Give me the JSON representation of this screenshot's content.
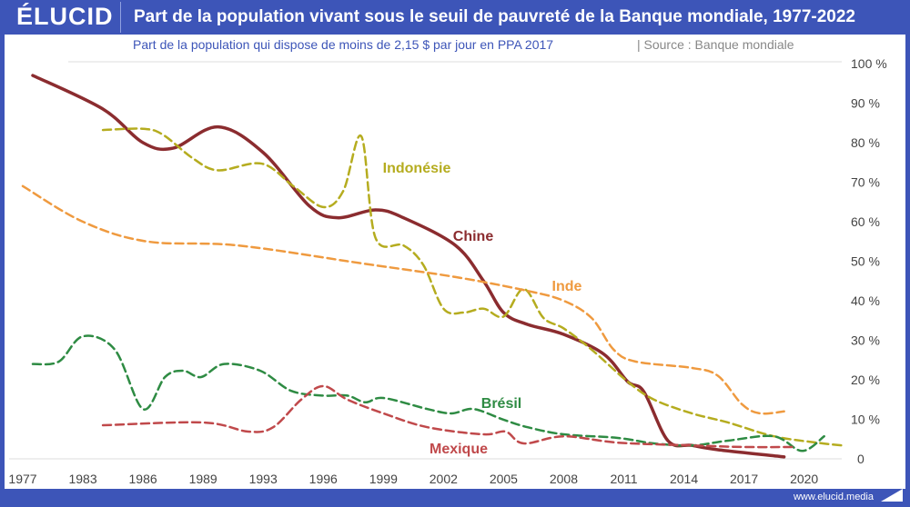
{
  "header": {
    "logo": "ÉLUCID",
    "title": "Part de la population vivant sous le seuil de pauvreté de la Banque mondiale, 1977-2022"
  },
  "subtitle": "Part de la population qui dispose de moins de 2,15 $ par jour en PPA 2017",
  "source": "|  Source : Banque mondiale",
  "footer": "www.elucid.media",
  "colors": {
    "brand": "#3d55b8"
  },
  "chart_data": {
    "type": "line",
    "title": "Part de la population vivant sous le seuil de pauvreté de la Banque mondiale, 1977-2022",
    "x_ticks": [
      "1977",
      "1983",
      "1986",
      "1989",
      "1993",
      "1996",
      "1999",
      "2002",
      "2005",
      "2008",
      "2011",
      "2014",
      "2017",
      "2020"
    ],
    "y_ticks": [
      "0",
      "10 %",
      "20 %",
      "30 %",
      "40 %",
      "50 %",
      "60 %",
      "70 %",
      "80 %",
      "90 %",
      "100 %"
    ],
    "ylim": [
      0,
      100
    ],
    "grid": "horizontal",
    "series": [
      {
        "name": "Chine",
        "color": "#8b2c2f",
        "dash": false,
        "x": [
          1978,
          1984,
          1986,
          1987.5,
          1990,
          1993,
          1995.3,
          1996.7,
          1998.6,
          2000,
          2002.6,
          2004,
          2005,
          2006.2,
          2008,
          2010,
          2011.2,
          2012,
          2013.2,
          2014.4,
          2015.7,
          2019
        ],
        "y": [
          97,
          88.5,
          80,
          78.6,
          84,
          77.5,
          64,
          61,
          63,
          61,
          54,
          45,
          37,
          34,
          31.5,
          26.5,
          19.5,
          17,
          4.6,
          3.4,
          2.3,
          0.5
        ]
      },
      {
        "name": "Indonésie",
        "color": "#b5ac1f",
        "dash": true,
        "x": [
          1984,
          1986,
          1987,
          1988.5,
          1990,
          1992.9,
          1994.5,
          1996,
          1997,
          1997.9,
          1998.6,
          2000,
          2001,
          2002,
          2003,
          2004,
          2005,
          2006,
          2007,
          2008,
          2009.4,
          2011.2,
          2012.5,
          2014.4,
          2016.2,
          2018.5,
          2020.8,
          2021.9
        ],
        "y": [
          83.2,
          83.5,
          82,
          76,
          73,
          74.7,
          69,
          63.7,
          67.8,
          81.6,
          56,
          54,
          49,
          38,
          37,
          38,
          36,
          43,
          35.6,
          33,
          27.6,
          19.5,
          15,
          11.5,
          9.2,
          5.7,
          4,
          3.4
        ]
      },
      {
        "name": "Inde",
        "color": "#ef9a3f",
        "dash": true,
        "x": [
          1977,
          1983,
          1986.2,
          1991.3,
          1998,
          2002.6,
          2006.2,
          2008,
          2009.4,
          2010.5,
          2011.6,
          2014.4,
          2015.7,
          2016.9,
          2017.8,
          2019
        ],
        "y": [
          69,
          60,
          55,
          54,
          49.4,
          46,
          42.5,
          40,
          35.6,
          27.6,
          24.6,
          23,
          21,
          13.8,
          11.5,
          12
        ]
      },
      {
        "name": "Brésil",
        "color": "#2e8b43",
        "dash": true,
        "x": [
          1978,
          1980.6,
          1983,
          1984.6,
          1986,
          1987.1,
          1988,
          1988.9,
          1990.4,
          1992.8,
          1994.4,
          1996,
          1997.2,
          1998.1,
          1999,
          2001.2,
          2002.4,
          2003.5,
          2005,
          2006.2,
          2008,
          2010.7,
          2012.5,
          2014.4,
          2016.2,
          2018.5,
          2019.9,
          2021
        ],
        "y": [
          24,
          24.6,
          31,
          27.6,
          12.6,
          20.7,
          22.3,
          20.7,
          24,
          22.3,
          17.2,
          16,
          16,
          14.3,
          15.4,
          12.6,
          11.5,
          12.6,
          9.9,
          8,
          6.2,
          5.3,
          3.9,
          3.4,
          4.6,
          5.7,
          2,
          5.7
        ]
      },
      {
        "name": "Mexique",
        "color": "#c0494b",
        "dash": true,
        "x": [
          1984,
          1989,
          1992,
          1993.5,
          1994.9,
          1996,
          1997.2,
          1999,
          2001.2,
          2004,
          2005.1,
          2006,
          2008,
          2010.7,
          2014.4,
          2017,
          2019.5
        ],
        "y": [
          8.5,
          9.2,
          6.9,
          8,
          15,
          18.4,
          15,
          11.5,
          8,
          6.2,
          6.9,
          3.9,
          5.7,
          4.1,
          3.4,
          3,
          3
        ]
      }
    ]
  }
}
